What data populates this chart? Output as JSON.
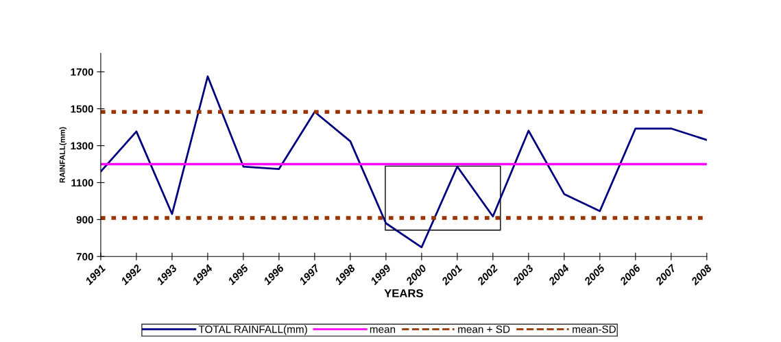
{
  "chart_data": {
    "type": "line",
    "xlabel": "YEARS",
    "ylabel": "RAINFALL(mm)",
    "x": [
      1991,
      1992,
      1993,
      1994,
      1995,
      1996,
      1997,
      1998,
      1999,
      2000,
      2001,
      2002,
      2003,
      2004,
      2005,
      2006,
      2007,
      2008
    ],
    "series": [
      {
        "name": "TOTAL RAINFALL(mm)",
        "color": "#000080",
        "values": [
          1160,
          1377,
          930,
          1675,
          1187,
          1174,
          1483,
          1324,
          880,
          750,
          1187,
          917,
          1381,
          1038,
          946,
          1393,
          1393,
          1331
        ]
      }
    ],
    "ref_lines": [
      {
        "axis": "y",
        "value": 1200,
        "label": "mean",
        "color": "#ff00ff",
        "line_style": "solid"
      },
      {
        "axis": "y",
        "value": 1483,
        "label": "mean + SD",
        "color": "#993300",
        "line_style": "dotted"
      },
      {
        "axis": "y",
        "value": 909,
        "label": "mean-SD",
        "color": "#993300",
        "line_style": "dotted"
      }
    ],
    "xlim": [
      1991,
      2008
    ],
    "xticks": [
      1991,
      1992,
      1993,
      1994,
      1995,
      1996,
      1997,
      1998,
      1999,
      2000,
      2001,
      2002,
      2003,
      2004,
      2005,
      2006,
      2007,
      2008
    ],
    "ylim": [
      700,
      1800
    ],
    "yticks": [
      700,
      900,
      1100,
      1300,
      1500,
      1700
    ],
    "grid": false,
    "legend": "bottom",
    "marker": "none",
    "line_style": "solid"
  }
}
